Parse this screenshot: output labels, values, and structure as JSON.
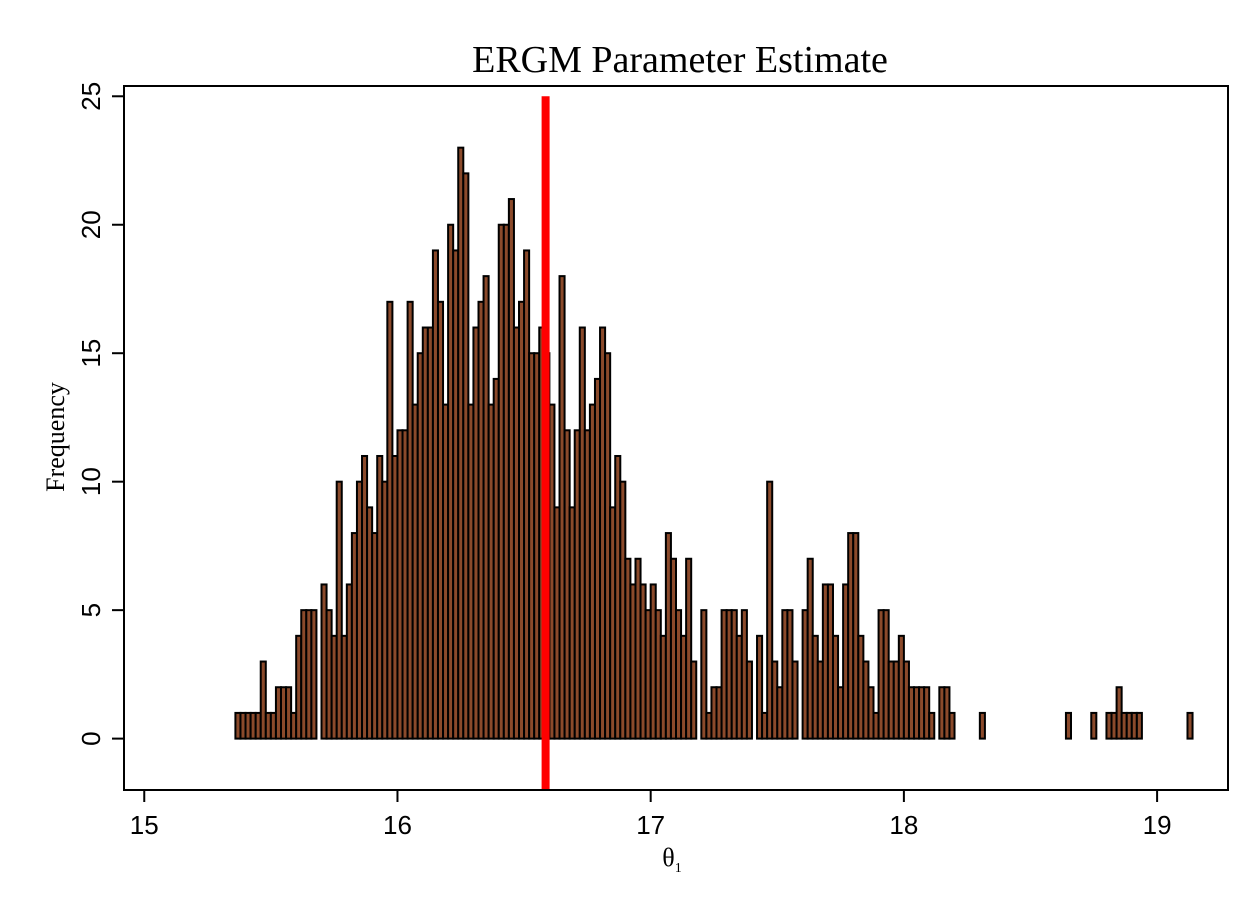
{
  "chart_data": {
    "type": "bar",
    "title": "ERGM Parameter Estimate",
    "xlabel": "θ",
    "xlabel_sub": "1",
    "ylabel": "Frequency",
    "xlim": [
      14.92,
      19.28
    ],
    "ylim": [
      -2,
      25.4
    ],
    "xticks": [
      15,
      16,
      17,
      18,
      19
    ],
    "yticks": [
      0,
      5,
      10,
      15,
      20,
      25
    ],
    "grid": false,
    "legend": "none",
    "bin_start": 15.36,
    "bin_width": 0.02,
    "bar_color": "#8b4a2b",
    "bar_edge_color": "#000000",
    "reference_line": {
      "x": 16.585,
      "color": "#ff0000"
    },
    "counts": [
      1,
      1,
      1,
      1,
      1,
      3,
      1,
      1,
      2,
      2,
      2,
      1,
      4,
      5,
      5,
      5,
      0,
      6,
      5,
      4,
      10,
      4,
      6,
      8,
      10,
      11,
      9,
      8,
      11,
      10,
      17,
      11,
      12,
      12,
      17,
      13,
      15,
      16,
      16,
      19,
      17,
      13,
      20,
      19,
      23,
      22,
      13,
      16,
      17,
      18,
      13,
      14,
      20,
      20,
      21,
      16,
      17,
      19,
      15,
      15,
      16,
      15,
      13,
      9,
      18,
      12,
      9,
      12,
      16,
      12,
      13,
      14,
      16,
      15,
      9,
      11,
      10,
      7,
      6,
      7,
      6,
      5,
      6,
      5,
      4,
      8,
      7,
      5,
      4,
      7,
      3,
      0,
      5,
      1,
      2,
      2,
      5,
      5,
      5,
      4,
      5,
      3,
      0,
      4,
      1,
      10,
      3,
      2,
      5,
      5,
      3,
      0,
      5,
      7,
      4,
      3,
      6,
      6,
      4,
      2,
      6,
      8,
      8,
      4,
      3,
      2,
      1,
      5,
      5,
      3,
      3,
      4,
      3,
      2,
      2,
      2,
      2,
      1,
      0,
      2,
      2,
      1,
      0,
      0,
      0,
      0,
      0,
      1
    ],
    "outlier_bins": [
      {
        "x": 18.64,
        "count": 1
      },
      {
        "x": 18.74,
        "count": 1
      },
      {
        "x": 18.8,
        "count": 1
      },
      {
        "x": 18.82,
        "count": 1
      },
      {
        "x": 18.84,
        "count": 2
      },
      {
        "x": 18.86,
        "count": 1
      },
      {
        "x": 18.88,
        "count": 1
      },
      {
        "x": 18.9,
        "count": 1
      },
      {
        "x": 18.92,
        "count": 1
      },
      {
        "x": 19.12,
        "count": 1
      }
    ]
  }
}
